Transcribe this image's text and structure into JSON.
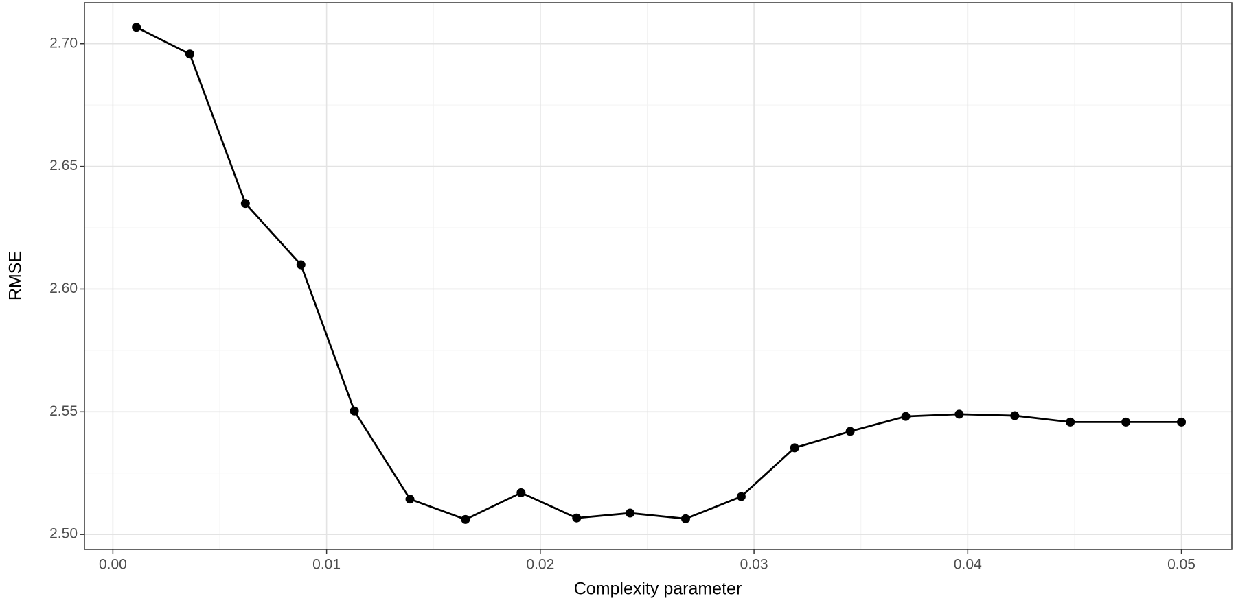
{
  "chart_data": {
    "type": "line",
    "x_label": "Complexity parameter",
    "y_label": "RMSE",
    "x": [
      0.0011,
      0.0036,
      0.0062,
      0.0088,
      0.0113,
      0.0139,
      0.0165,
      0.0191,
      0.0217,
      0.0242,
      0.0268,
      0.0294,
      0.0319,
      0.0345,
      0.0371,
      0.0396,
      0.0422,
      0.0448,
      0.0474,
      0.05
    ],
    "series": [
      {
        "name": "RMSE",
        "color": "#000000",
        "values": [
          2.7067,
          2.6958,
          2.6349,
          2.6099,
          2.5503,
          2.5144,
          2.5061,
          2.517,
          2.5067,
          2.5087,
          2.5064,
          2.5154,
          2.5353,
          2.542,
          2.5481,
          2.549,
          2.5484,
          2.5458,
          2.5458,
          2.5458
        ]
      }
    ],
    "xlim": [
      -0.00133,
      0.05236
    ],
    "ylim": [
      2.4939,
      2.7167
    ],
    "xticks": [
      {
        "value": 0,
        "label": "0.00"
      },
      {
        "value": 0.01,
        "label": "0.01"
      },
      {
        "value": 0.02,
        "label": "0.02"
      },
      {
        "value": 0.03,
        "label": "0.03"
      },
      {
        "value": 0.04,
        "label": "0.04"
      },
      {
        "value": 0.05,
        "label": "0.05"
      }
    ],
    "yticks": [
      {
        "value": 2.5,
        "label": "2.50"
      },
      {
        "value": 2.55,
        "label": "2.55"
      },
      {
        "value": 2.6,
        "label": "2.60"
      },
      {
        "value": 2.65,
        "label": "2.65"
      },
      {
        "value": 2.7,
        "label": "2.70"
      }
    ],
    "xminor": [
      0.005,
      0.015,
      0.025,
      0.035,
      0.045
    ],
    "yminor": [
      2.525,
      2.575,
      2.625,
      2.675
    ],
    "grid": true
  }
}
